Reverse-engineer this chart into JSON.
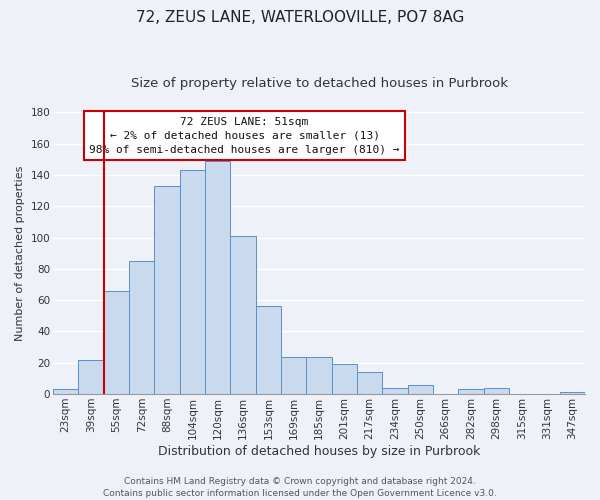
{
  "title": "72, ZEUS LANE, WATERLOOVILLE, PO7 8AG",
  "subtitle": "Size of property relative to detached houses in Purbrook",
  "xlabel": "Distribution of detached houses by size in Purbrook",
  "ylabel": "Number of detached properties",
  "bar_labels": [
    "23sqm",
    "39sqm",
    "55sqm",
    "72sqm",
    "88sqm",
    "104sqm",
    "120sqm",
    "136sqm",
    "153sqm",
    "169sqm",
    "185sqm",
    "201sqm",
    "217sqm",
    "234sqm",
    "250sqm",
    "266sqm",
    "282sqm",
    "298sqm",
    "315sqm",
    "331sqm",
    "347sqm"
  ],
  "bar_heights": [
    3,
    22,
    66,
    85,
    133,
    143,
    149,
    101,
    56,
    24,
    24,
    19,
    14,
    4,
    6,
    0,
    3,
    4,
    0,
    0,
    1
  ],
  "bar_color": "#c9d9ee",
  "bar_edge_color": "#5b8fc9",
  "vline_x_index": 2,
  "vline_color": "#cc0000",
  "ylim": [
    0,
    180
  ],
  "yticks": [
    0,
    20,
    40,
    60,
    80,
    100,
    120,
    140,
    160,
    180
  ],
  "annotation_title": "72 ZEUS LANE: 51sqm",
  "annotation_line1": "← 2% of detached houses are smaller (13)",
  "annotation_line2": "98% of semi-detached houses are larger (810) →",
  "annotation_box_color": "#ffffff",
  "annotation_box_edge": "#cc0000",
  "footer_line1": "Contains HM Land Registry data © Crown copyright and database right 2024.",
  "footer_line2": "Contains public sector information licensed under the Open Government Licence v3.0.",
  "background_color": "#eef2f8",
  "grid_color": "#ffffff",
  "title_fontsize": 11,
  "subtitle_fontsize": 9.5,
  "xlabel_fontsize": 9,
  "ylabel_fontsize": 8,
  "tick_fontsize": 7.5,
  "annotation_title_fontsize": 8.5,
  "annotation_body_fontsize": 8,
  "footer_fontsize": 6.5
}
